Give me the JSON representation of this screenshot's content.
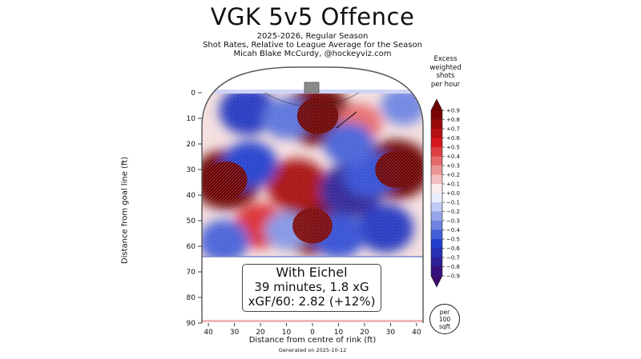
{
  "title": "VGK 5v5 Offence",
  "subtitle_lines": [
    "2025-2026, Regular Season",
    "Shot Rates, Relative to League Average for the Season",
    "Micah Blake McCurdy, @hockeyviz.com"
  ],
  "colorbar_title_lines": [
    "Excess",
    "weighted",
    "shots",
    "per hour"
  ],
  "colorbar": {
    "ticks": [
      "+0.9",
      "+0.8",
      "+0.7",
      "+0.6",
      "+0.5",
      "+0.4",
      "+0.3",
      "+0.2",
      "+0.1",
      "+0.0",
      "−0.1",
      "−0.2",
      "−0.3",
      "−0.4",
      "−0.5",
      "−0.6",
      "−0.7",
      "−0.8",
      "−0.9"
    ],
    "max_color": "#6b0000",
    "min_color": "#3b0a6e",
    "pos_color": "#d7191c",
    "neg_color": "#1f3fcf"
  },
  "annotation": {
    "line1": "With Eichel",
    "line2": "39 minutes, 1.8 xG",
    "line3": "xGF/60: 2.82 (+12%)"
  },
  "per_badge_lines": [
    "per",
    "100",
    "sqft"
  ],
  "footer": "Generated on 2025-10-12",
  "chart_data": {
    "type": "heatmap",
    "xlabel": "Distance from centre of rink (ft)",
    "ylabel": "Distance from goal line (ft)",
    "x_ticks": [
      "40",
      "30",
      "20",
      "10",
      "0",
      "10",
      "20",
      "30",
      "40"
    ],
    "y_ticks": [
      "0",
      "10",
      "20",
      "30",
      "40",
      "50",
      "60",
      "70",
      "80",
      "90"
    ],
    "xlim": [
      -42.5,
      42.5
    ],
    "ylim": [
      0,
      90
    ],
    "value_range": [
      -0.9,
      0.9
    ],
    "hotspots": [
      {
        "x": -33,
        "y": 34,
        "value": 0.9
      },
      {
        "x": 32,
        "y": 30,
        "value": 0.9
      },
      {
        "x": 2,
        "y": 9,
        "value": 0.9
      },
      {
        "x": 0,
        "y": 52,
        "value": 0.85
      },
      {
        "x": -6,
        "y": 36,
        "value": 0.7
      },
      {
        "x": -20,
        "y": 52,
        "value": 0.5
      },
      {
        "x": 18,
        "y": 12,
        "value": 0.35
      },
      {
        "x": -25,
        "y": 7,
        "value": -0.6
      },
      {
        "x": -24,
        "y": 28,
        "value": -0.55
      },
      {
        "x": 15,
        "y": 38,
        "value": -0.75
      },
      {
        "x": 28,
        "y": 53,
        "value": -0.6
      },
      {
        "x": 10,
        "y": 56,
        "value": -0.5
      },
      {
        "x": 22,
        "y": 32,
        "value": -0.5
      },
      {
        "x": -34,
        "y": 58,
        "value": -0.45
      },
      {
        "x": 35,
        "y": 5,
        "value": -0.35
      },
      {
        "x": -10,
        "y": 10,
        "value": -0.4
      },
      {
        "x": 14,
        "y": 20,
        "value": -0.45
      },
      {
        "x": -10,
        "y": 54,
        "value": -0.3
      }
    ]
  }
}
